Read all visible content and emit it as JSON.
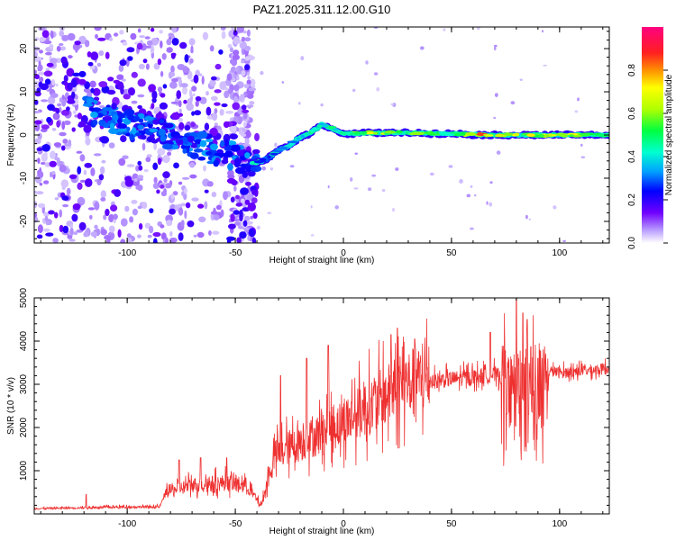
{
  "figure": {
    "title": "PAZ1.2025.311.12.00.G10"
  },
  "chart_data": [
    {
      "type": "heatmap",
      "xlabel": "Height of straight line (km)",
      "ylabel": "Frequency (Hz)",
      "xlim": [
        -143,
        123
      ],
      "ylim": [
        -25,
        25
      ],
      "xticks": [
        -100,
        -50,
        0,
        50,
        100
      ],
      "yticks": [
        -20,
        -10,
        0,
        10,
        20
      ],
      "grid": false,
      "colorbar": {
        "label": "Normalized spectral amplitude",
        "range": [
          0,
          1
        ],
        "ticks": [
          "0.0",
          "0.2",
          "0.4",
          "0.6",
          "0.8"
        ],
        "colormap": [
          "#ffffff",
          "#b89cff",
          "#7000ff",
          "#0000ff",
          "#00a0ff",
          "#00ffd0",
          "#00ff40",
          "#b0ff00",
          "#ffff00",
          "#ff9000",
          "#ff2020",
          "#ff0080"
        ]
      },
      "ridge": {
        "height_km": [
          -40,
          -35,
          -30,
          -25,
          -20,
          -15,
          -10,
          -5,
          0,
          10,
          20,
          30,
          40,
          50,
          60,
          70,
          80,
          90,
          100,
          110,
          120
        ],
        "frequency_hz": [
          -6.5,
          -5.5,
          -3.5,
          -2.5,
          -0.5,
          0.5,
          2.5,
          1.5,
          0.2,
          0.5,
          0.5,
          0.5,
          0.4,
          0.3,
          0.1,
          0.0,
          0.0,
          0.0,
          0.0,
          0.0,
          0.0
        ],
        "amplitude": [
          0.25,
          0.3,
          0.35,
          0.4,
          0.45,
          0.4,
          0.45,
          0.5,
          0.55,
          0.7,
          0.65,
          0.8,
          0.55,
          0.55,
          0.85,
          0.8,
          0.7,
          0.75,
          0.7,
          0.65,
          0.55
        ]
      }
    },
    {
      "type": "line",
      "xlabel": "Height of straight line (km)",
      "ylabel": "SNR (10 * v/v)",
      "xlim": [
        -143,
        123
      ],
      "ylim": [
        0,
        5000
      ],
      "xticks": [
        -100,
        -50,
        0,
        50,
        100
      ],
      "yticks": [
        1000,
        2000,
        3000,
        4000,
        5000
      ],
      "grid": false,
      "series": [
        {
          "name": "SNR",
          "color": "#ee3030",
          "envelope_x": [
            -143,
            -100,
            -85,
            -82,
            -70,
            -55,
            -45,
            -38,
            -32,
            -25,
            -15,
            -5,
            0,
            10,
            20,
            30,
            40,
            50,
            60,
            70,
            75,
            80,
            85,
            90,
            95,
            100,
            110,
            123
          ],
          "envelope_y": [
            120,
            160,
            160,
            500,
            650,
            700,
            650,
            180,
            1300,
            1500,
            1700,
            1950,
            2050,
            2350,
            2650,
            2950,
            3050,
            3100,
            3150,
            3200,
            3150,
            3100,
            3200,
            3250,
            3300,
            3250,
            3300,
            3350
          ],
          "peaks_x": [
            -119,
            -76,
            -66,
            -54,
            -29,
            -17,
            -7,
            22,
            25,
            33,
            68,
            80,
            83,
            85,
            90
          ],
          "peaks_y": [
            450,
            1250,
            1300,
            1300,
            3200,
            3600,
            3900,
            4150,
            4300,
            4050,
            4200,
            5000,
            4650,
            4500,
            3600
          ]
        }
      ]
    }
  ]
}
